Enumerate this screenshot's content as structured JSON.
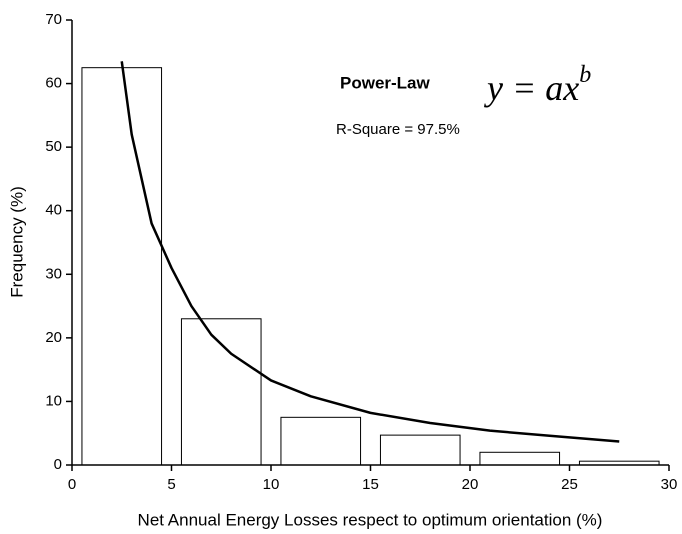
{
  "chart_data": {
    "type": "bar",
    "x_label": "Net Annual Energy Losses respect to optimum orientation (%)",
    "y_label": "Frequency (%)",
    "annotations": {
      "model": "Power-Law",
      "equation": {
        "base": "y = ax",
        "exponent": "b"
      },
      "r_square": "R-Square = 97.5%"
    },
    "series": [
      {
        "type": "bar",
        "color": "#000000",
        "x": [
          2.5,
          7.5,
          12.5,
          17.5,
          22.5,
          27.5
        ],
        "values": [
          62.5,
          23,
          7.5,
          4.7,
          2,
          0.6
        ]
      },
      {
        "type": "line",
        "color": "#000000",
        "x": [
          2.5,
          3,
          4,
          5,
          6,
          7,
          8,
          10,
          12,
          15,
          18,
          21,
          24,
          27.5
        ],
        "values": [
          63.5,
          52,
          38,
          31,
          25,
          20.5,
          17.5,
          13.3,
          10.8,
          8.2,
          6.6,
          5.4,
          4.6,
          3.7
        ]
      }
    ],
    "xlim": [
      0,
      30
    ],
    "xticks": [
      0,
      5,
      10,
      15,
      20,
      25,
      30
    ],
    "ylim": [
      0,
      70
    ],
    "yticks": [
      0,
      10,
      20,
      30,
      40,
      50,
      60,
      70
    ]
  }
}
